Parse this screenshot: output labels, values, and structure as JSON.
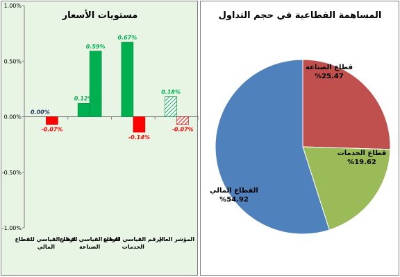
{
  "chart_data": [
    {
      "type": "bar",
      "title": "مستويات الأسعار",
      "categories": [
        "الرقم القياسي للقطاع المالي",
        "الرقم القياسي لقطاع الصناعة",
        "الرقم القياسي لقطاع الخدمات",
        "المؤشر العام"
      ],
      "series": [
        {
          "values": [
            0.0,
            0.12,
            0.67,
            0.18
          ],
          "labels": [
            "0.00%",
            "0.12%",
            "0.67%",
            "0.18%"
          ]
        },
        {
          "values": [
            -0.07,
            0.59,
            -0.14,
            -0.07
          ],
          "labels": [
            "-0.07%",
            "0.59%",
            "-0.14%",
            "-0.07%"
          ]
        }
      ],
      "ylim": [
        -1.0,
        1.0
      ],
      "yticks": [
        "1.00%",
        "0.50%",
        "0.00%",
        "-0.50%",
        "-1.00%"
      ],
      "grid": false,
      "colors": {
        "positive": "#00b050",
        "negative": "#ff0000",
        "zero_label": "#1f3864",
        "positive_label": "#00b050",
        "negative_label": "#ff0000"
      }
    },
    {
      "type": "pie",
      "title": "المساهمة القطاعية في حجم التداول",
      "slices": [
        {
          "label": "قطاع الصناعة",
          "value": 25.47,
          "value_label": "%25.47",
          "color": "#c0504d"
        },
        {
          "label": "قطاع الخدمات",
          "value": 19.62,
          "value_label": "%19.62",
          "color": "#9bbb59"
        },
        {
          "label": "القطاع المالي",
          "value": 54.92,
          "value_label": "%54.92",
          "color": "#4f81bd"
        }
      ]
    }
  ]
}
